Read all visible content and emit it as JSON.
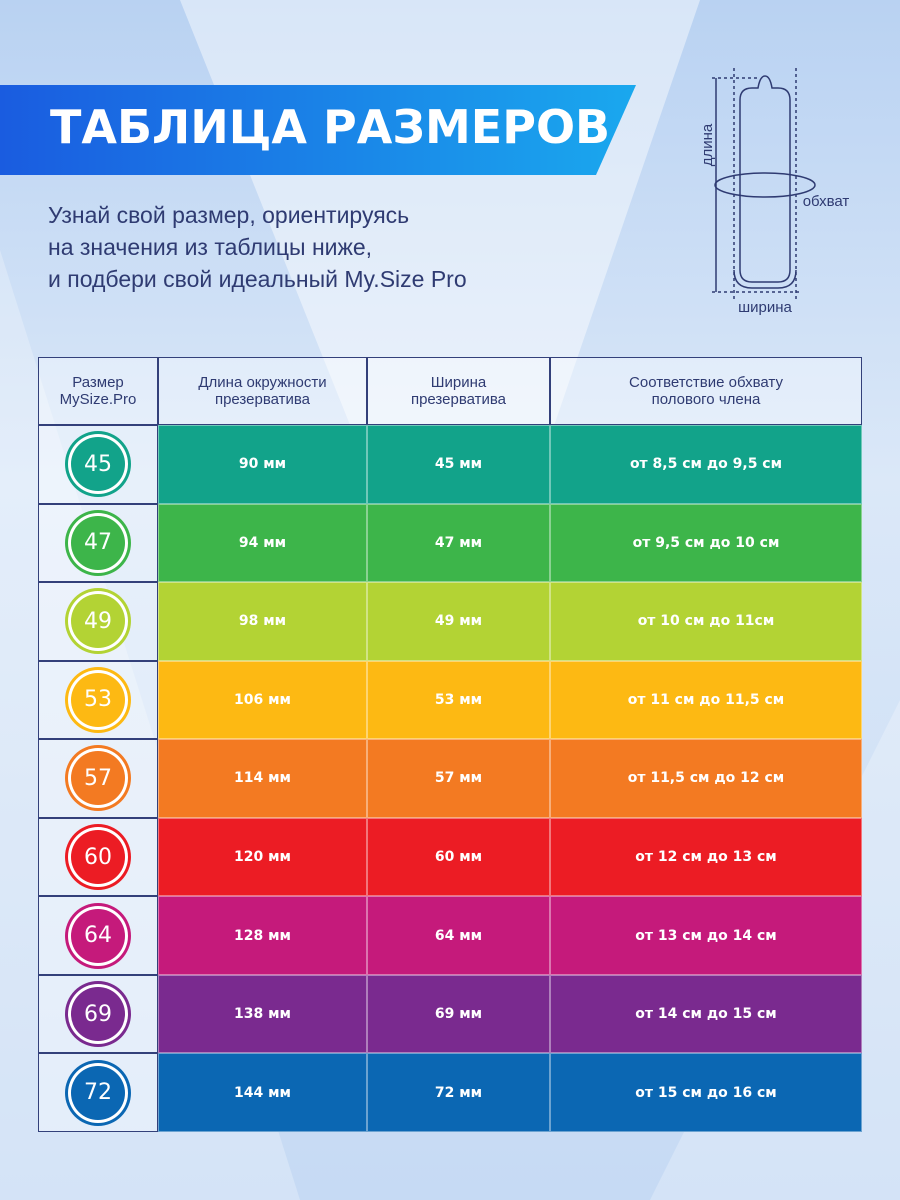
{
  "header": {
    "title": "ТАБЛИЦА РАЗМЕРОВ",
    "subtitle": [
      "Узнай свой размер, ориентируясь",
      "на значения из таблицы ниже,",
      "и подбери свой идеальный My.Size Pro"
    ]
  },
  "diagram": {
    "length": "длина",
    "girth": "обхват",
    "width": "ширина"
  },
  "table": {
    "columns": [
      [
        "Размер",
        "MySize.Pro"
      ],
      [
        "Длина окружности",
        "презерватива"
      ],
      [
        "Ширина",
        "презерватива"
      ],
      [
        "Соответствие обхвату",
        "полового члена"
      ]
    ],
    "rows": [
      {
        "size": "45",
        "length": "90 мм",
        "width": "45 мм",
        "girth": "от 8,5 см до 9,5 см",
        "color": "#12a38a"
      },
      {
        "size": "47",
        "length": "94 мм",
        "width": "47 мм",
        "girth": "от 9,5 см до 10 см",
        "color": "#3db54a"
      },
      {
        "size": "49",
        "length": "98 мм",
        "width": "49 мм",
        "girth": "от 10 см до 11см",
        "color": "#b3d334"
      },
      {
        "size": "53",
        "length": "106 мм",
        "width": "53 мм",
        "girth": "от 11 см до 11,5 см",
        "color": "#fdb913"
      },
      {
        "size": "57",
        "length": "114 мм",
        "width": "57 мм",
        "girth": "от 11,5 см до 12 см",
        "color": "#f37a22"
      },
      {
        "size": "60",
        "length": "120 мм",
        "width": "60 мм",
        "girth": "от 12 см до 13 см",
        "color": "#ec1c24"
      },
      {
        "size": "64",
        "length": "128 мм",
        "width": "64 мм",
        "girth": "от 13 см до 14 см",
        "color": "#c51a7b"
      },
      {
        "size": "69",
        "length": "138 мм",
        "width": "69 мм",
        "girth": "от 14 см до 15 см",
        "color": "#7a2a8f"
      },
      {
        "size": "72",
        "length": "144 мм",
        "width": "72 мм",
        "girth": "от 15 см до 16 см",
        "color": "#0b67b3"
      }
    ]
  }
}
